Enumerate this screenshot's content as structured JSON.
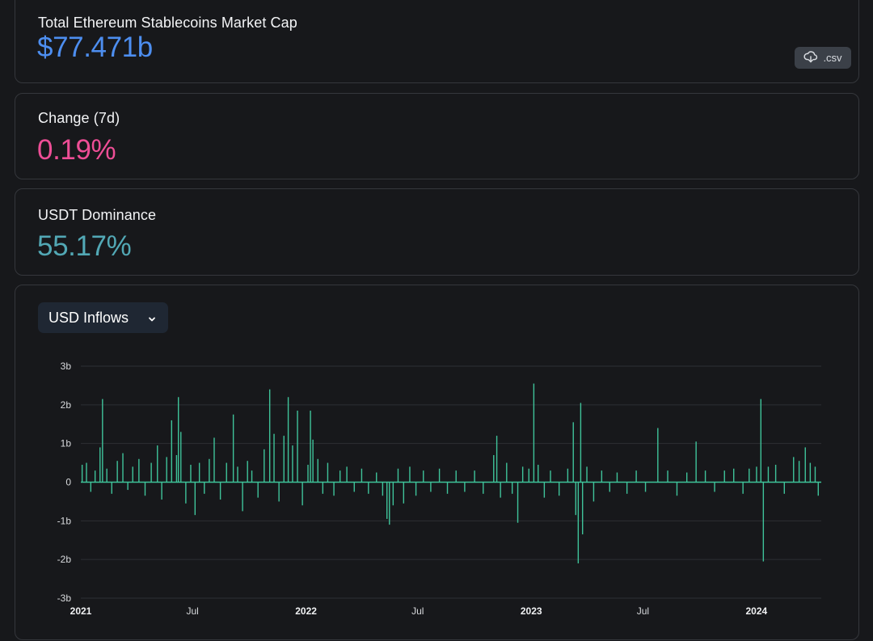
{
  "cards": {
    "market_cap": {
      "label": "Total Ethereum Stablecoins Market Cap",
      "value": "$77.471b"
    },
    "change": {
      "label": "Change (7d)",
      "value": "0.19%"
    },
    "dominance": {
      "label": "USDT Dominance",
      "value": "55.17%"
    }
  },
  "csv_button": {
    "label": ".csv",
    "icon": "cloud-download-icon"
  },
  "metric_select": {
    "label": "USD Inflows",
    "icon": "chevron-down-icon"
  },
  "colors": {
    "market_cap": "#4d8ef0",
    "change": "#ee4e96",
    "dominance": "#52a8b5",
    "bars": "#3fc39a"
  },
  "chart_data": {
    "type": "bar",
    "title": "",
    "xlabel": "",
    "ylabel": "",
    "y_unit": "b",
    "ylim": [
      -3,
      3
    ],
    "y_ticks": [
      {
        "value": 3,
        "label": "3b"
      },
      {
        "value": 2,
        "label": "2b"
      },
      {
        "value": 1,
        "label": "1b"
      },
      {
        "value": 0,
        "label": "0"
      },
      {
        "value": -1,
        "label": "-1b"
      },
      {
        "value": -2,
        "label": "-2b"
      },
      {
        "value": -3,
        "label": "-3b"
      }
    ],
    "xlim": [
      "2021-01-01",
      "2024-04-15"
    ],
    "x_ticks": [
      {
        "date": "2021-01-01",
        "label": "2021",
        "major": true
      },
      {
        "date": "2021-07-01",
        "label": "Jul",
        "major": false
      },
      {
        "date": "2022-01-01",
        "label": "2022",
        "major": true
      },
      {
        "date": "2022-07-01",
        "label": "Jul",
        "major": false
      },
      {
        "date": "2023-01-01",
        "label": "2023",
        "major": true
      },
      {
        "date": "2023-07-01",
        "label": "Jul",
        "major": false
      },
      {
        "date": "2024-01-01",
        "label": "2024",
        "major": true
      }
    ],
    "grid": true,
    "series": [
      {
        "values": [
          [
            "2021-01-03",
            0.45
          ],
          [
            "2021-01-10",
            0.5
          ],
          [
            "2021-01-17",
            -0.25
          ],
          [
            "2021-01-24",
            0.3
          ],
          [
            "2021-02-01",
            0.9
          ],
          [
            "2021-02-05",
            2.15
          ],
          [
            "2021-02-12",
            0.35
          ],
          [
            "2021-02-20",
            -0.3
          ],
          [
            "2021-03-01",
            0.55
          ],
          [
            "2021-03-10",
            0.75
          ],
          [
            "2021-03-18",
            -0.2
          ],
          [
            "2021-03-26",
            0.4
          ],
          [
            "2021-04-05",
            0.6
          ],
          [
            "2021-04-15",
            -0.35
          ],
          [
            "2021-04-25",
            0.5
          ],
          [
            "2021-05-05",
            0.95
          ],
          [
            "2021-05-12",
            -0.45
          ],
          [
            "2021-05-20",
            0.65
          ],
          [
            "2021-05-28",
            1.6
          ],
          [
            "2021-06-05",
            0.7
          ],
          [
            "2021-06-08",
            2.2
          ],
          [
            "2021-06-12",
            1.3
          ],
          [
            "2021-06-20",
            -0.55
          ],
          [
            "2021-06-28",
            0.45
          ],
          [
            "2021-07-05",
            -0.85
          ],
          [
            "2021-07-12",
            0.5
          ],
          [
            "2021-07-20",
            -0.3
          ],
          [
            "2021-07-28",
            0.6
          ],
          [
            "2021-08-05",
            1.15
          ],
          [
            "2021-08-15",
            -0.45
          ],
          [
            "2021-08-25",
            0.5
          ],
          [
            "2021-09-05",
            1.75
          ],
          [
            "2021-09-12",
            0.4
          ],
          [
            "2021-09-20",
            -0.75
          ],
          [
            "2021-09-28",
            0.55
          ],
          [
            "2021-10-05",
            0.3
          ],
          [
            "2021-10-15",
            -0.4
          ],
          [
            "2021-10-25",
            0.85
          ],
          [
            "2021-11-03",
            2.4
          ],
          [
            "2021-11-10",
            1.25
          ],
          [
            "2021-11-18",
            -0.5
          ],
          [
            "2021-11-26",
            1.2
          ],
          [
            "2021-12-03",
            2.2
          ],
          [
            "2021-12-10",
            0.95
          ],
          [
            "2021-12-18",
            1.85
          ],
          [
            "2021-12-26",
            -0.6
          ],
          [
            "2022-01-04",
            0.45
          ],
          [
            "2022-01-08",
            1.85
          ],
          [
            "2022-01-12",
            1.1
          ],
          [
            "2022-01-20",
            0.6
          ],
          [
            "2022-01-28",
            -0.3
          ],
          [
            "2022-02-05",
            0.5
          ],
          [
            "2022-02-15",
            -0.35
          ],
          [
            "2022-02-25",
            0.3
          ],
          [
            "2022-03-08",
            0.4
          ],
          [
            "2022-03-20",
            -0.25
          ],
          [
            "2022-04-01",
            0.35
          ],
          [
            "2022-04-12",
            -0.3
          ],
          [
            "2022-04-25",
            0.25
          ],
          [
            "2022-05-05",
            -0.35
          ],
          [
            "2022-05-12",
            -0.95
          ],
          [
            "2022-05-16",
            -1.1
          ],
          [
            "2022-05-22",
            -0.6
          ],
          [
            "2022-05-30",
            0.35
          ],
          [
            "2022-06-08",
            -0.55
          ],
          [
            "2022-06-18",
            0.4
          ],
          [
            "2022-06-28",
            -0.35
          ],
          [
            "2022-07-10",
            0.3
          ],
          [
            "2022-07-22",
            -0.25
          ],
          [
            "2022-08-05",
            0.35
          ],
          [
            "2022-08-18",
            -0.3
          ],
          [
            "2022-09-01",
            0.3
          ],
          [
            "2022-09-15",
            -0.25
          ],
          [
            "2022-10-01",
            0.3
          ],
          [
            "2022-10-15",
            -0.3
          ],
          [
            "2022-11-01",
            0.7
          ],
          [
            "2022-11-06",
            1.2
          ],
          [
            "2022-11-12",
            -0.4
          ],
          [
            "2022-11-22",
            0.5
          ],
          [
            "2022-12-01",
            -0.3
          ],
          [
            "2022-12-10",
            -1.05
          ],
          [
            "2022-12-18",
            0.4
          ],
          [
            "2022-12-28",
            0.35
          ],
          [
            "2023-01-05",
            2.55
          ],
          [
            "2023-01-12",
            0.45
          ],
          [
            "2023-01-22",
            -0.4
          ],
          [
            "2023-02-01",
            0.3
          ],
          [
            "2023-02-15",
            -0.35
          ],
          [
            "2023-03-01",
            0.35
          ],
          [
            "2023-03-10",
            1.55
          ],
          [
            "2023-03-14",
            -0.85
          ],
          [
            "2023-03-18",
            -2.1
          ],
          [
            "2023-03-22",
            2.05
          ],
          [
            "2023-03-25",
            -1.35
          ],
          [
            "2023-04-01",
            0.4
          ],
          [
            "2023-04-12",
            -0.5
          ],
          [
            "2023-04-25",
            0.3
          ],
          [
            "2023-05-08",
            -0.25
          ],
          [
            "2023-05-20",
            0.25
          ],
          [
            "2023-06-05",
            -0.3
          ],
          [
            "2023-06-20",
            0.3
          ],
          [
            "2023-07-05",
            -0.25
          ],
          [
            "2023-07-25",
            1.4
          ],
          [
            "2023-08-10",
            0.3
          ],
          [
            "2023-08-25",
            -0.35
          ],
          [
            "2023-09-10",
            0.25
          ],
          [
            "2023-09-25",
            1.05
          ],
          [
            "2023-10-10",
            0.3
          ],
          [
            "2023-10-25",
            -0.25
          ],
          [
            "2023-11-10",
            0.3
          ],
          [
            "2023-11-25",
            0.35
          ],
          [
            "2023-12-10",
            -0.3
          ],
          [
            "2023-12-20",
            0.35
          ],
          [
            "2024-01-01",
            0.4
          ],
          [
            "2024-01-08",
            2.15
          ],
          [
            "2024-01-12",
            -2.05
          ],
          [
            "2024-01-20",
            0.4
          ],
          [
            "2024-02-01",
            0.45
          ],
          [
            "2024-02-15",
            -0.3
          ],
          [
            "2024-03-01",
            0.65
          ],
          [
            "2024-03-10",
            0.55
          ],
          [
            "2024-03-20",
            0.9
          ],
          [
            "2024-03-28",
            0.5
          ],
          [
            "2024-04-05",
            0.4
          ],
          [
            "2024-04-10",
            -0.35
          ]
        ]
      }
    ]
  }
}
